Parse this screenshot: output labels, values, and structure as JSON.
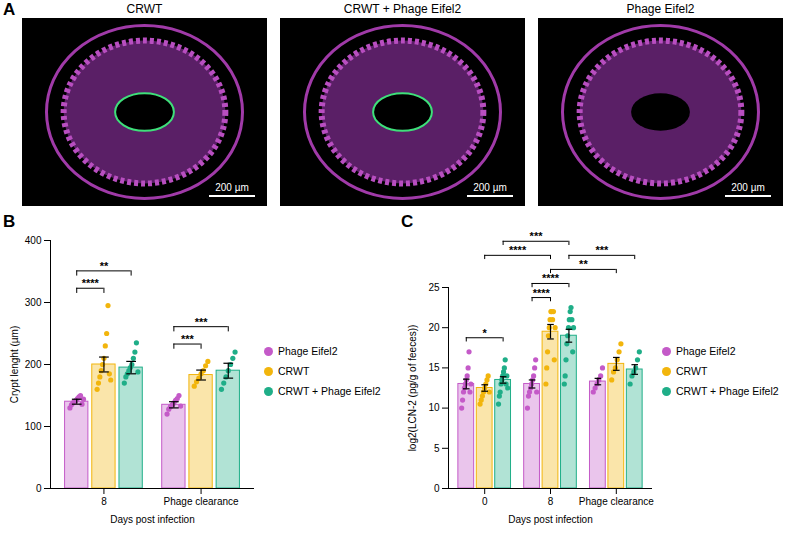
{
  "panel_a": {
    "panel": "A",
    "images": [
      {
        "title": "CRWT",
        "scale_bar": "200 µm"
      },
      {
        "title": "CRWT + Phage Eifel2",
        "scale_bar": "200 µm"
      },
      {
        "title": "Phage Eifel2",
        "scale_bar": "200 µm"
      }
    ]
  },
  "chart_data": [
    {
      "type": "bar",
      "panel": "B",
      "x_label": "Days post infection",
      "y_label": "Crypt lenght (µm)",
      "categories": [
        "8",
        "Phage clearance"
      ],
      "ylim": [
        0,
        400
      ],
      "yticks": [
        0,
        100,
        200,
        300,
        400
      ],
      "legend": "right",
      "series": [
        {
          "name": "Phage Eifel2",
          "color": "#c45ac8",
          "values": [
            140,
            135
          ],
          "errors": [
            4,
            5
          ],
          "points": [
            [
              130,
              135,
              138,
              140,
              142,
              145,
              148,
              150,
              136,
              144
            ],
            [
              120,
              128,
              132,
              135,
              138,
              142,
              145,
              150,
              133
            ]
          ]
        },
        {
          "name": "CRWT",
          "color": "#f2b50c",
          "values": [
            200,
            183
          ],
          "errors": [
            12,
            8
          ],
          "points": [
            [
              160,
              170,
              180,
              190,
              200,
              210,
              230,
              250,
              295,
              185,
              175
            ],
            [
              165,
              172,
              178,
              185,
              190,
              198,
              205
            ]
          ]
        },
        {
          "name": "CRWT + Phage Eifel2",
          "color": "#1fae88",
          "values": [
            195,
            190
          ],
          "errors": [
            10,
            12
          ],
          "points": [
            [
              170,
              180,
              185,
              190,
              195,
              200,
              210,
              220,
              235,
              188
            ],
            [
              160,
              170,
              180,
              190,
              200,
              210,
              220
            ]
          ]
        }
      ],
      "significance": [
        {
          "groups": [
            [
              "8",
              "Phage Eifel2"
            ],
            [
              "8",
              "CRWT"
            ]
          ],
          "label": "****"
        },
        {
          "groups": [
            [
              "8",
              "Phage Eifel2"
            ],
            [
              "8",
              "CRWT + Phage Eifel2"
            ]
          ],
          "label": "**"
        },
        {
          "groups": [
            [
              "Phage clearance",
              "Phage Eifel2"
            ],
            [
              "Phage clearance",
              "CRWT"
            ]
          ],
          "label": "***"
        },
        {
          "groups": [
            [
              "Phage clearance",
              "Phage Eifel2"
            ],
            [
              "Phage clearance",
              "CRWT + Phage Eifel2"
            ]
          ],
          "label": "***"
        }
      ]
    },
    {
      "type": "bar",
      "panel": "C",
      "x_label": "Days post infection",
      "y_label": "log2(LCN-2 (pg/g of feeces))",
      "categories": [
        "0",
        "8",
        "Phage clearance"
      ],
      "ylim": [
        0,
        25
      ],
      "yticks": [
        0,
        5,
        10,
        15,
        20,
        25
      ],
      "legend": "right",
      "series": [
        {
          "name": "Phage Eifel2",
          "color": "#c45ac8",
          "values": [
            13.0,
            13.0,
            13.3
          ],
          "errors": [
            0.6,
            0.5,
            0.4
          ],
          "points": [
            [
              10,
              11,
              12,
              12.5,
              13,
              13.5,
              14,
              15,
              17,
              12,
              13
            ],
            [
              10,
              11.5,
              12,
              12.5,
              13,
              13.5,
              14,
              15,
              16,
              12
            ],
            [
              12,
              12.5,
              13,
              13.5,
              14,
              15
            ]
          ]
        },
        {
          "name": "CRWT",
          "color": "#f2b50c",
          "values": [
            12.5,
            19.5,
            15.5
          ],
          "errors": [
            0.4,
            0.9,
            0.8
          ],
          "points": [
            [
              10.5,
              11,
              11.5,
              12,
              12.5,
              13,
              13.5,
              14,
              12
            ],
            [
              13,
              15,
              17,
              19,
              20,
              21,
              22,
              22,
              21,
              22,
              16,
              20
            ],
            [
              13.5,
              14.5,
              15,
              16,
              17,
              18
            ]
          ]
        },
        {
          "name": "CRWT + Phage Eifel2",
          "color": "#1fae88",
          "values": [
            13.5,
            19.0,
            14.8
          ],
          "errors": [
            0.4,
            0.8,
            0.6
          ],
          "points": [
            [
              10.5,
              11.5,
              12,
              13,
              13.5,
              14,
              14.5,
              15,
              16,
              13,
              14,
              12.5
            ],
            [
              13,
              14,
              16,
              18,
              19,
              20,
              21,
              22,
              22.5,
              21,
              17,
              20
            ],
            [
              13,
              14,
              14.5,
              15,
              16,
              17
            ]
          ]
        }
      ],
      "significance": [
        {
          "groups": [
            [
              "0",
              "Phage Eifel2"
            ],
            [
              "0",
              "CRWT + Phage Eifel2"
            ]
          ],
          "label": "*"
        },
        {
          "groups": [
            [
              "8",
              "Phage Eifel2"
            ],
            [
              "8",
              "CRWT"
            ]
          ],
          "label": "****"
        },
        {
          "groups": [
            [
              "8",
              "Phage Eifel2"
            ],
            [
              "8",
              "CRWT + Phage Eifel2"
            ]
          ],
          "label": "****"
        },
        {
          "groups": [
            [
              "8",
              "CRWT"
            ],
            [
              "Phage clearance",
              "CRWT"
            ]
          ],
          "label": "**"
        },
        {
          "groups": [
            [
              "8",
              "CRWT + Phage Eifel2"
            ],
            [
              "Phage clearance",
              "CRWT + Phage Eifel2"
            ]
          ],
          "label": "***"
        },
        {
          "groups": [
            [
              "0",
              "CRWT"
            ],
            [
              "8",
              "CRWT"
            ]
          ],
          "label": "****"
        },
        {
          "groups": [
            [
              "0",
              "CRWT + Phage Eifel2"
            ],
            [
              "8",
              "CRWT + Phage Eifel2"
            ]
          ],
          "label": "***"
        }
      ]
    }
  ]
}
